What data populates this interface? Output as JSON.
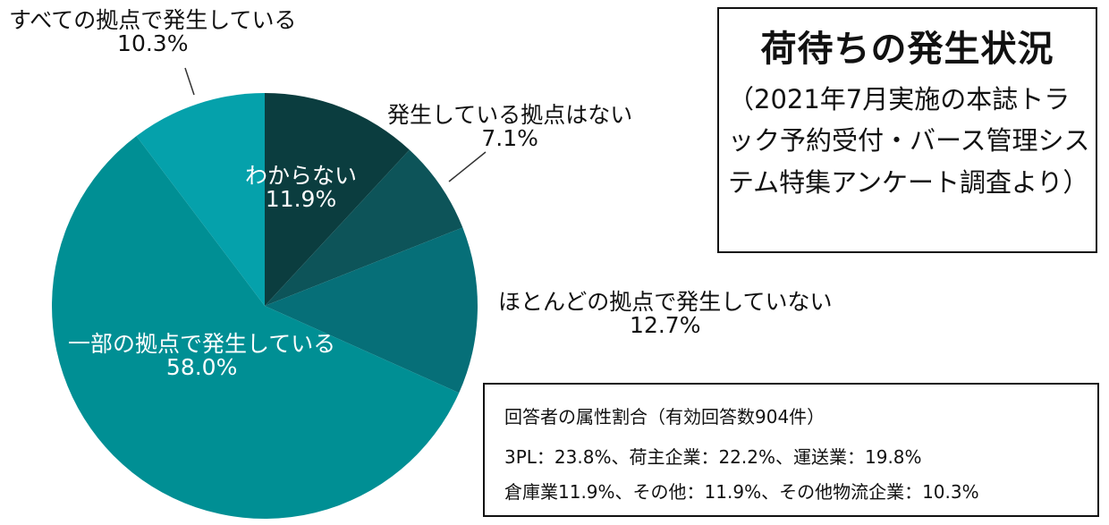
{
  "chart_data": {
    "type": "pie",
    "start_angle_deg": 0,
    "direction": "clockwise",
    "slices": [
      {
        "label": "わからない",
        "value": 11.9,
        "display": "11.9%",
        "color": "#0b3d3f"
      },
      {
        "label": "発生している拠点はない",
        "value": 7.1,
        "display": "7.1%",
        "color": "#0d5459"
      },
      {
        "label": "ほとんどの拠点で発生していない",
        "value": 12.7,
        "display": "12.7%",
        "color": "#066f78"
      },
      {
        "label": "一部の拠点で発生している",
        "value": 58.0,
        "display": "58.0%",
        "color": "#008f94"
      },
      {
        "label": "すべての拠点で発生している",
        "value": 10.3,
        "display": "10.3%",
        "color": "#05a1ab"
      }
    ]
  },
  "title_box": {
    "title": "荷待ちの発生状況",
    "subtitle": "（2021年7月実施の本誌トラック予約受付・バース管理システム特集アンケート調査より）"
  },
  "respondents": {
    "title": "回答者の属性割合（有効回答数904件）",
    "line1": "3PL：23.8%、荷主企業：22.2%、運送業：19.8%",
    "line2": "倉庫業11.9%、その他：11.9%、その他物流企業：10.3%"
  }
}
